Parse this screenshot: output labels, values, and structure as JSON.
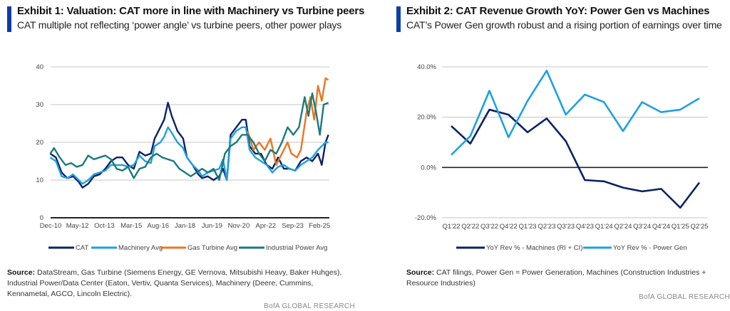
{
  "chart_data": [
    {
      "type": "line",
      "title": "Exhibit 1: Valuation: CAT more in line with Machinery vs Turbine peers",
      "subtitle": "CAT multiple not reflecting ‘power angle’ vs turbine peers, other power plays",
      "xlabel": "",
      "ylabel": "",
      "ylim": [
        0,
        40
      ],
      "yticks": [
        "0",
        "10",
        "20",
        "30",
        "40"
      ],
      "xlim": [
        2010.92,
        2025.6
      ],
      "xticks": [
        {
          "label": "Dec-10",
          "x": 2010.92
        },
        {
          "label": "May-12",
          "x": 2012.33
        },
        {
          "label": "Oct-13",
          "x": 2013.75
        },
        {
          "label": "Mar-15",
          "x": 2015.17
        },
        {
          "label": "Aug-16",
          "x": 2016.58
        },
        {
          "label": "Jan-18",
          "x": 2018.0
        },
        {
          "label": "Jun-19",
          "x": 2019.42
        },
        {
          "label": "Nov-20",
          "x": 2020.83
        },
        {
          "label": "Apr-22",
          "x": 2022.25
        },
        {
          "label": "Sep-23",
          "x": 2023.67
        },
        {
          "label": "Feb-25",
          "x": 2025.08
        }
      ],
      "grid": true,
      "legend": "bottom",
      "series": [
        {
          "name": "CAT",
          "color": "#0b2265",
          "x": [
            2010.9,
            2011.2,
            2011.5,
            2011.8,
            2012.1,
            2012.4,
            2012.6,
            2012.9,
            2013.2,
            2013.5,
            2013.8,
            2014.1,
            2014.4,
            2014.7,
            2015.0,
            2015.3,
            2015.6,
            2015.9,
            2016.2,
            2016.4,
            2016.7,
            2016.9,
            2017.1,
            2017.3,
            2017.6,
            2017.9,
            2018.1,
            2018.4,
            2018.7,
            2018.9,
            2019.2,
            2019.5,
            2019.8,
            2020.0,
            2020.2,
            2020.4,
            2020.7,
            2021.0,
            2021.2,
            2021.4,
            2021.7,
            2022.0,
            2022.3,
            2022.6,
            2022.9,
            2023.2,
            2023.5,
            2023.8,
            2024.1,
            2024.4,
            2024.7,
            2025.0,
            2025.2,
            2025.4,
            2025.55
          ],
          "y": [
            17,
            16,
            12,
            10.5,
            11,
            9.5,
            8,
            9,
            11,
            11.5,
            13,
            15,
            16,
            16,
            14,
            13,
            17.5,
            16.5,
            17,
            21,
            24,
            26,
            30.5,
            27,
            23,
            21,
            16,
            14,
            11.5,
            10.5,
            11,
            10,
            11,
            13,
            10,
            22,
            24,
            26,
            26,
            19,
            17,
            17,
            14,
            13,
            16,
            13,
            13,
            12.5,
            15,
            16,
            15,
            17,
            14,
            20,
            22
          ]
        },
        {
          "name": "Machinery Avg",
          "color": "#1ea0e0",
          "x": [
            2010.9,
            2011.2,
            2011.5,
            2011.8,
            2012.1,
            2012.4,
            2012.6,
            2012.9,
            2013.2,
            2013.5,
            2013.8,
            2014.1,
            2014.4,
            2014.7,
            2015.0,
            2015.3,
            2015.6,
            2015.9,
            2016.2,
            2016.4,
            2016.7,
            2016.9,
            2017.1,
            2017.3,
            2017.6,
            2017.9,
            2018.1,
            2018.4,
            2018.7,
            2018.9,
            2019.2,
            2019.5,
            2019.8,
            2020.0,
            2020.2,
            2020.4,
            2020.7,
            2021.0,
            2021.2,
            2021.4,
            2021.7,
            2022.0,
            2022.3,
            2022.6,
            2022.9,
            2023.2,
            2023.5,
            2023.8,
            2024.1,
            2024.4,
            2024.7,
            2025.0,
            2025.2,
            2025.4,
            2025.55
          ],
          "y": [
            16,
            15,
            11,
            10.5,
            11.5,
            10,
            9,
            10,
            11.5,
            12,
            12.5,
            14,
            14,
            14,
            13.5,
            14,
            16.5,
            15,
            14.5,
            19,
            20,
            21.5,
            24,
            22.5,
            20,
            18.5,
            16,
            14,
            12.5,
            11,
            12,
            12.5,
            13,
            15.5,
            10,
            21,
            23,
            24,
            24,
            18,
            16,
            15,
            14,
            12,
            13.5,
            14,
            13,
            12.5,
            14,
            15,
            16,
            18,
            19,
            20,
            20
          ]
        },
        {
          "name": "Gas Turbine Avg",
          "color": "#e87722",
          "x": [
            2021.3,
            2021.6,
            2021.9,
            2022.2,
            2022.5,
            2022.8,
            2023.1,
            2023.4,
            2023.6,
            2023.9,
            2024.1,
            2024.4,
            2024.6,
            2024.8,
            2025.0,
            2025.2,
            2025.4,
            2025.55
          ],
          "y": [
            23,
            18,
            20,
            18,
            21,
            14,
            17,
            20,
            17,
            16,
            18,
            28,
            32,
            26,
            35,
            31,
            37,
            36.5
          ]
        },
        {
          "name": "Industrial Power Avg",
          "color": "#1b7a7a",
          "x": [
            2010.9,
            2011.1,
            2011.4,
            2011.7,
            2012.0,
            2012.3,
            2012.6,
            2012.9,
            2013.2,
            2013.5,
            2013.8,
            2014.1,
            2014.4,
            2014.7,
            2015.0,
            2015.3,
            2015.6,
            2015.9,
            2016.2,
            2016.5,
            2016.8,
            2017.1,
            2017.4,
            2017.7,
            2018.0,
            2018.3,
            2018.6,
            2018.9,
            2019.2,
            2019.5,
            2019.8,
            2020.1,
            2020.4,
            2020.7,
            2021.0,
            2021.3,
            2021.6,
            2021.9,
            2022.2,
            2022.5,
            2022.8,
            2023.1,
            2023.4,
            2023.7,
            2024.0,
            2024.3,
            2024.5,
            2024.7,
            2024.9,
            2025.1,
            2025.3,
            2025.55
          ],
          "y": [
            17,
            18.5,
            16,
            14,
            14.5,
            13.5,
            14,
            16.5,
            15.5,
            16,
            16.5,
            15.5,
            13,
            12.5,
            13.5,
            10.5,
            13,
            13.5,
            16,
            17,
            16,
            15.5,
            15,
            13,
            12,
            11,
            12,
            13,
            12,
            13,
            10,
            17,
            19,
            20,
            22,
            22,
            20,
            17,
            15,
            18,
            17,
            20,
            24,
            22,
            24,
            32,
            27,
            33,
            28,
            22,
            30,
            30.5
          ]
        }
      ],
      "source_label": "Source:",
      "source_text": "DataStream, Gas Turbine (Siemens Energy, GE Vernova, Mitsubishi Heavy, Baker Huhges), Industrial Power/Data Center (Eaton, Vertiv, Quanta Services), Machinery (Deere, Cummins, Kennametal, AGCO, Lincoln Electric).",
      "brand": "BofA GLOBAL RESEARCH"
    },
    {
      "type": "line",
      "title": "Exhibit 2: CAT Revenue Growth YoY: Power Gen vs Machines",
      "subtitle": "CAT’s Power Gen growth robust and a rising portion of earnings over time",
      "xlabel": "",
      "ylabel": "",
      "ylim": [
        -20,
        40
      ],
      "yticks": [
        "-20.0%",
        "0.0%",
        "20.0%",
        "40.0%"
      ],
      "categories": [
        "Q1'22",
        "Q2'22",
        "Q3'22",
        "Q4'22",
        "Q1'23",
        "Q2'23",
        "Q3'23",
        "Q4'23",
        "Q1'24",
        "Q2'24",
        "Q3'24",
        "Q4'24",
        "Q1'25",
        "Q2'25"
      ],
      "grid": true,
      "legend": "bottom",
      "series": [
        {
          "name": "YoY Rev % - Machines (RI + CI)",
          "color": "#0b2265",
          "values": [
            16.5,
            9.5,
            23,
            21,
            14,
            19.5,
            10.5,
            -5,
            -5.5,
            -8,
            -9.5,
            -8.5,
            -16,
            -6
          ]
        },
        {
          "name": "YoY Rev % - Power Gen",
          "color": "#1ea0e0",
          "values": [
            5,
            12.5,
            30.5,
            12,
            26.5,
            38.5,
            21,
            29,
            26,
            14.5,
            26,
            22,
            23,
            27.5
          ]
        }
      ],
      "source_label": "Source:",
      "source_text": "CAT filings, Power Gen = Power Generation, Machines (Construction Industries + Resource Industries)",
      "brand": "BofA GLOBAL RESEARCH"
    }
  ]
}
